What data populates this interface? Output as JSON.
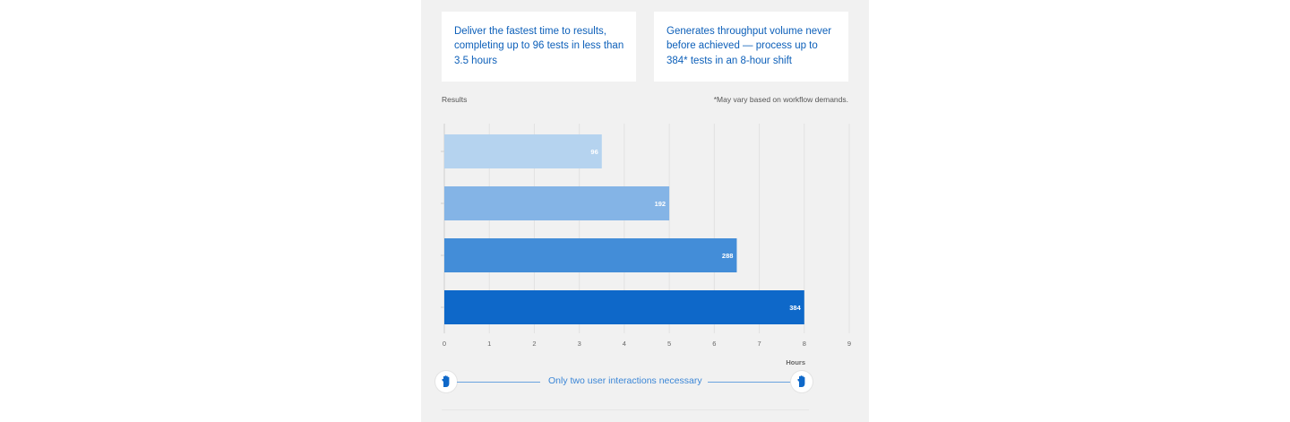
{
  "cards": {
    "left": "Deliver the fastest time to results, completing up to 96 tests in less than 3.5 hours",
    "right": "Generates throughput volume never before achieved — process up to 384* tests in an 8-hour shift"
  },
  "chart_header": {
    "results_label": "Results",
    "footnote": "*May vary based on workflow demands."
  },
  "chart_data": {
    "type": "bar",
    "orientation": "horizontal",
    "categories": [
      "96",
      "192",
      "288",
      "384"
    ],
    "values": [
      3.5,
      5,
      6.5,
      8
    ],
    "bar_labels": [
      "96",
      "192",
      "288",
      "384"
    ],
    "xlabel": "Hours",
    "ylabel": "",
    "xlim": [
      0,
      9
    ],
    "xticks": [
      0,
      1,
      2,
      3,
      4,
      5,
      6,
      7,
      8,
      9
    ],
    "grid": true,
    "colors": [
      "#b5d3ef",
      "#84b4e6",
      "#438dd8",
      "#0e68c9"
    ]
  },
  "interaction": {
    "text": "Only two user interactions necessary",
    "icon": "hand-icon"
  }
}
